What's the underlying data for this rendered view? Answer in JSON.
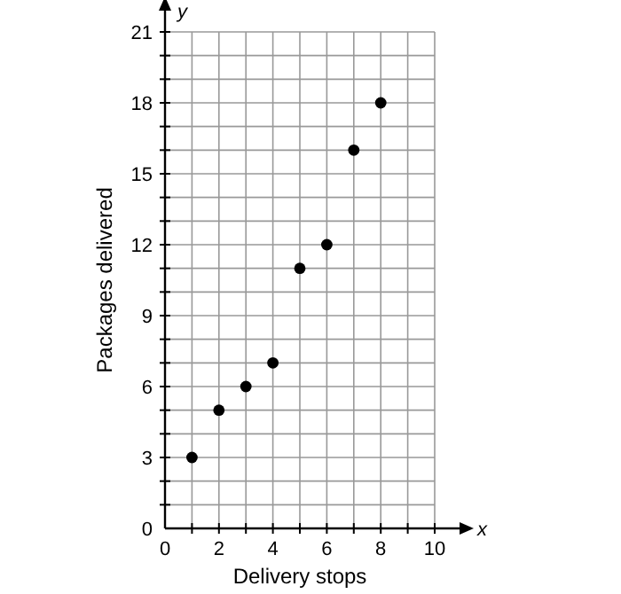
{
  "chart_data": {
    "type": "scatter",
    "xlabel": "Delivery stops",
    "ylabel": "Packages delivered",
    "x": [
      1,
      2,
      3,
      4,
      5,
      6,
      7,
      8
    ],
    "values": [
      3,
      5,
      6,
      7,
      11,
      12,
      16,
      18
    ],
    "color": "#000000",
    "marker": "circle",
    "xlim": [
      0,
      10
    ],
    "ylim": [
      0,
      21
    ],
    "xticks": [
      0,
      {
        "value": 1,
        "label": null
      },
      2,
      {
        "value": 3,
        "label": null
      },
      4,
      {
        "value": 5,
        "label": null
      },
      6,
      {
        "value": 7,
        "label": null
      },
      8,
      {
        "value": 9,
        "label": null
      },
      10
    ],
    "yticks": [
      0,
      {
        "value": 1,
        "label": null
      },
      {
        "value": 2,
        "label": null
      },
      3,
      {
        "value": 4,
        "label": null
      },
      {
        "value": 5,
        "label": null
      },
      6,
      {
        "value": 7,
        "label": null
      },
      {
        "value": 8,
        "label": null
      },
      9,
      {
        "value": 10,
        "label": null
      },
      {
        "value": 11,
        "label": null
      },
      12,
      {
        "value": 13,
        "label": null
      },
      {
        "value": 14,
        "label": null
      },
      15,
      {
        "value": 16,
        "label": null
      },
      {
        "value": 17,
        "label": null
      },
      18,
      {
        "value": 19,
        "label": null
      },
      {
        "value": 20,
        "label": null
      },
      21
    ],
    "grid": true,
    "annotations": [
      "x",
      "y"
    ]
  }
}
